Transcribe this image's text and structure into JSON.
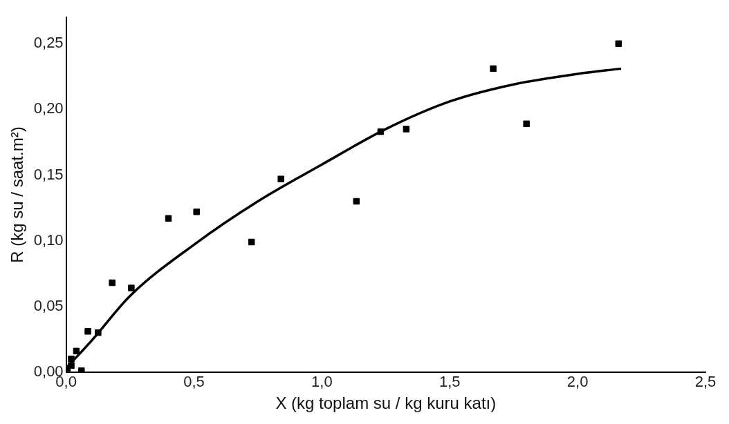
{
  "chart_data": {
    "type": "scatter",
    "xlabel": "X (kg toplam su / kg kuru katı)",
    "ylabel": "R (kg su / saat.m²)",
    "xlim": [
      0,
      2.5
    ],
    "ylim": [
      0,
      0.27
    ],
    "xticks": [
      {
        "value": 0,
        "label": "0,0"
      },
      {
        "value": 0.5,
        "label": "0,5"
      },
      {
        "value": 1,
        "label": "1,0"
      },
      {
        "value": 1.5,
        "label": "1,5"
      },
      {
        "value": 2,
        "label": "2,0"
      },
      {
        "value": 2.5,
        "label": "2,5"
      }
    ],
    "yticks": [
      {
        "value": 0,
        "label": "0,00"
      },
      {
        "value": 0.05,
        "label": "0,05"
      },
      {
        "value": 0.1,
        "label": "0,10"
      },
      {
        "value": 0.15,
        "label": "0,15"
      },
      {
        "value": 0.2,
        "label": "0,20"
      },
      {
        "value": 0.25,
        "label": "0,25"
      }
    ],
    "grid": false,
    "legend": false,
    "marker": "square",
    "series": [
      {
        "color": "#000000",
        "x": [
          0.005,
          0.02,
          0.02,
          0.06,
          0.04,
          0.085,
          0.125,
          0.18,
          0.255,
          0.4,
          0.51,
          0.725,
          0.84,
          1.135,
          1.23,
          1.33,
          1.67,
          1.8,
          2.16
        ],
        "values": [
          0.003,
          0.01,
          0.005,
          0.001,
          0.016,
          0.031,
          0.03,
          0.068,
          0.064,
          0.117,
          0.122,
          0.099,
          0.147,
          0.13,
          0.183,
          0.185,
          0.231,
          0.189,
          0.25
        ]
      },
      {
        "type": "line",
        "color": "#000000",
        "marker": "none",
        "line_style": "solid",
        "x": [
          0,
          0.1,
          0.25,
          0.5,
          0.75,
          1,
          1.25,
          1.5,
          1.75,
          2,
          2.17
        ],
        "values": [
          0.003,
          0.024,
          0.058,
          0.097,
          0.13,
          0.158,
          0.185,
          0.206,
          0.219,
          0.227,
          0.231
        ]
      }
    ]
  }
}
